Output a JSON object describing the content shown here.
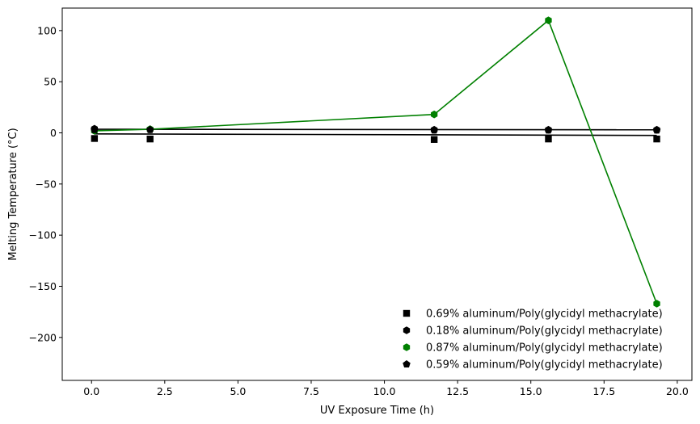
{
  "chart_data": {
    "type": "scatter",
    "title": "",
    "xlabel": "UV Exposure Time (h)",
    "ylabel": "Melting Temperature (°C)",
    "xlim": [
      -1.0,
      20.5
    ],
    "ylim": [
      -242,
      122
    ],
    "xticks": [
      0.0,
      2.5,
      5.0,
      7.5,
      10.0,
      12.5,
      15.0,
      17.5,
      20.0
    ],
    "xtick_labels": [
      "0.0",
      "2.5",
      "5.0",
      "7.5",
      "10.0",
      "12.5",
      "15.0",
      "17.5",
      "20.0"
    ],
    "yticks": [
      100,
      50,
      0,
      -50,
      -100,
      -150,
      -200
    ],
    "ytick_labels": [
      "100",
      "50",
      "0",
      "−50",
      "−100",
      "−150",
      "−200"
    ],
    "grid": false,
    "legend_position": "lower-right",
    "series": [
      {
        "name": "0.69% aluminum/Poly(glycidyl methacrylate)",
        "marker": "square",
        "color": "#000000",
        "x": [
          0.1,
          2.0,
          11.7,
          15.6,
          19.3
        ],
        "y": [
          -5.5,
          -6.0,
          -6.5,
          -6.0,
          -6.0
        ],
        "fit_line": {
          "x": [
            0.1,
            19.3
          ],
          "y": [
            -1.0,
            -2.5
          ],
          "color": "#000000"
        }
      },
      {
        "name": "0.18% aluminum/Poly(glycidyl methacrylate)",
        "marker": "hexagon",
        "color": "#000000",
        "x": [
          0.1,
          2.0,
          11.7,
          15.6,
          19.3
        ],
        "y": [
          4.0,
          3.5,
          3.0,
          3.0,
          3.0
        ],
        "fit_line": {
          "x": [
            0.1,
            19.3
          ],
          "y": [
            3.5,
            3.0
          ],
          "color": "#000000"
        }
      },
      {
        "name": "0.87% aluminum/Poly(glycidyl methacrylate)",
        "marker": "hexagon",
        "color": "#008000",
        "x": [
          0.1,
          2.0,
          11.7,
          15.6,
          19.3
        ],
        "y": [
          2.0,
          3.5,
          18.0,
          110.0,
          -167.0
        ],
        "connected": true
      },
      {
        "name": "0.59% aluminum/Poly(glycidyl methacrylate)",
        "marker": "pentagon",
        "color": "#000000",
        "x": [
          0.1,
          2.0,
          11.7,
          15.6,
          19.3
        ],
        "y": [
          3.0,
          3.0,
          2.5,
          2.5,
          2.5
        ]
      }
    ]
  }
}
